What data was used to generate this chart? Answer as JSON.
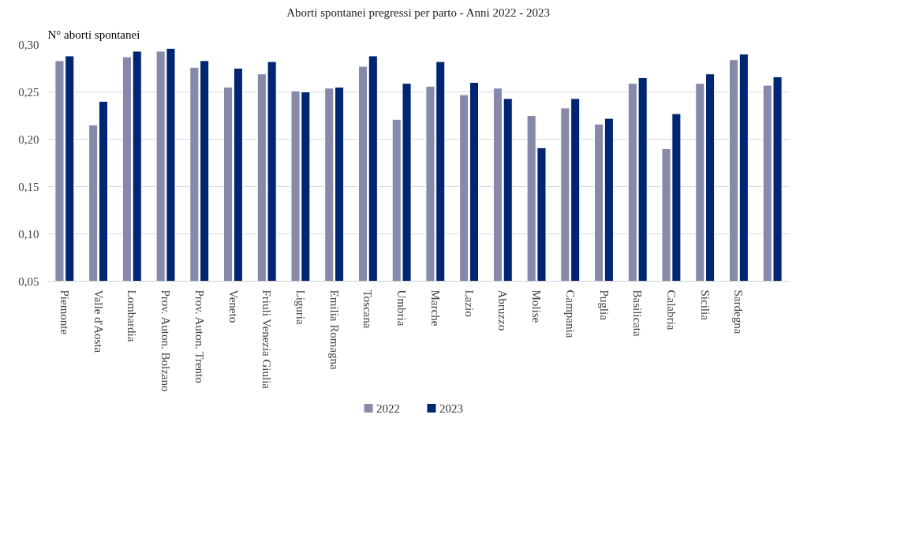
{
  "chart_data": {
    "type": "bar",
    "title": "Aborti spontanei pregressi per parto - Anni 2022 - 2023",
    "ylabel": "N° aborti spontanei",
    "categories": [
      "Piemonte",
      "Valle d'Aosta",
      "Lombardia",
      "Prov. Auton. Bolzano",
      "Prov. Auton. Trento",
      "Veneto",
      "Friuli Venezia Giulia",
      "Liguria",
      "Emilia Romagna",
      "Toscana",
      "Umbria",
      "Marche",
      "Lazio",
      "Abruzzo",
      "Molise",
      "Campania",
      "Puglia",
      "Basilicata",
      "Calabria",
      "Sicilia",
      "Sardegna",
      null
    ],
    "series": [
      {
        "name": "2022",
        "color": "#8689aa",
        "values": [
          0.283,
          0.215,
          0.287,
          0.293,
          0.276,
          0.255,
          0.269,
          0.251,
          0.254,
          0.277,
          0.221,
          0.256,
          0.247,
          0.254,
          0.225,
          0.233,
          0.216,
          0.259,
          0.19,
          0.259,
          0.284,
          0.257
        ]
      },
      {
        "name": "2023",
        "color": "#002673",
        "values": [
          0.288,
          0.24,
          0.293,
          0.296,
          0.283,
          0.275,
          0.282,
          0.25,
          0.255,
          0.288,
          0.259,
          0.282,
          0.26,
          0.243,
          0.191,
          0.243,
          0.222,
          0.265,
          0.227,
          0.269,
          0.29,
          0.266
        ]
      }
    ],
    "ylim": [
      0.05,
      0.3
    ],
    "yticks": [
      {
        "value": 0.05,
        "label": "0,05"
      },
      {
        "value": 0.1,
        "label": "0,10"
      },
      {
        "value": 0.15,
        "label": "0,15"
      },
      {
        "value": 0.2,
        "label": "0,20"
      },
      {
        "value": 0.25,
        "label": "0,25"
      },
      {
        "value": 0.3,
        "label": "0,30"
      }
    ],
    "grid": "y",
    "legend": "bottom"
  }
}
